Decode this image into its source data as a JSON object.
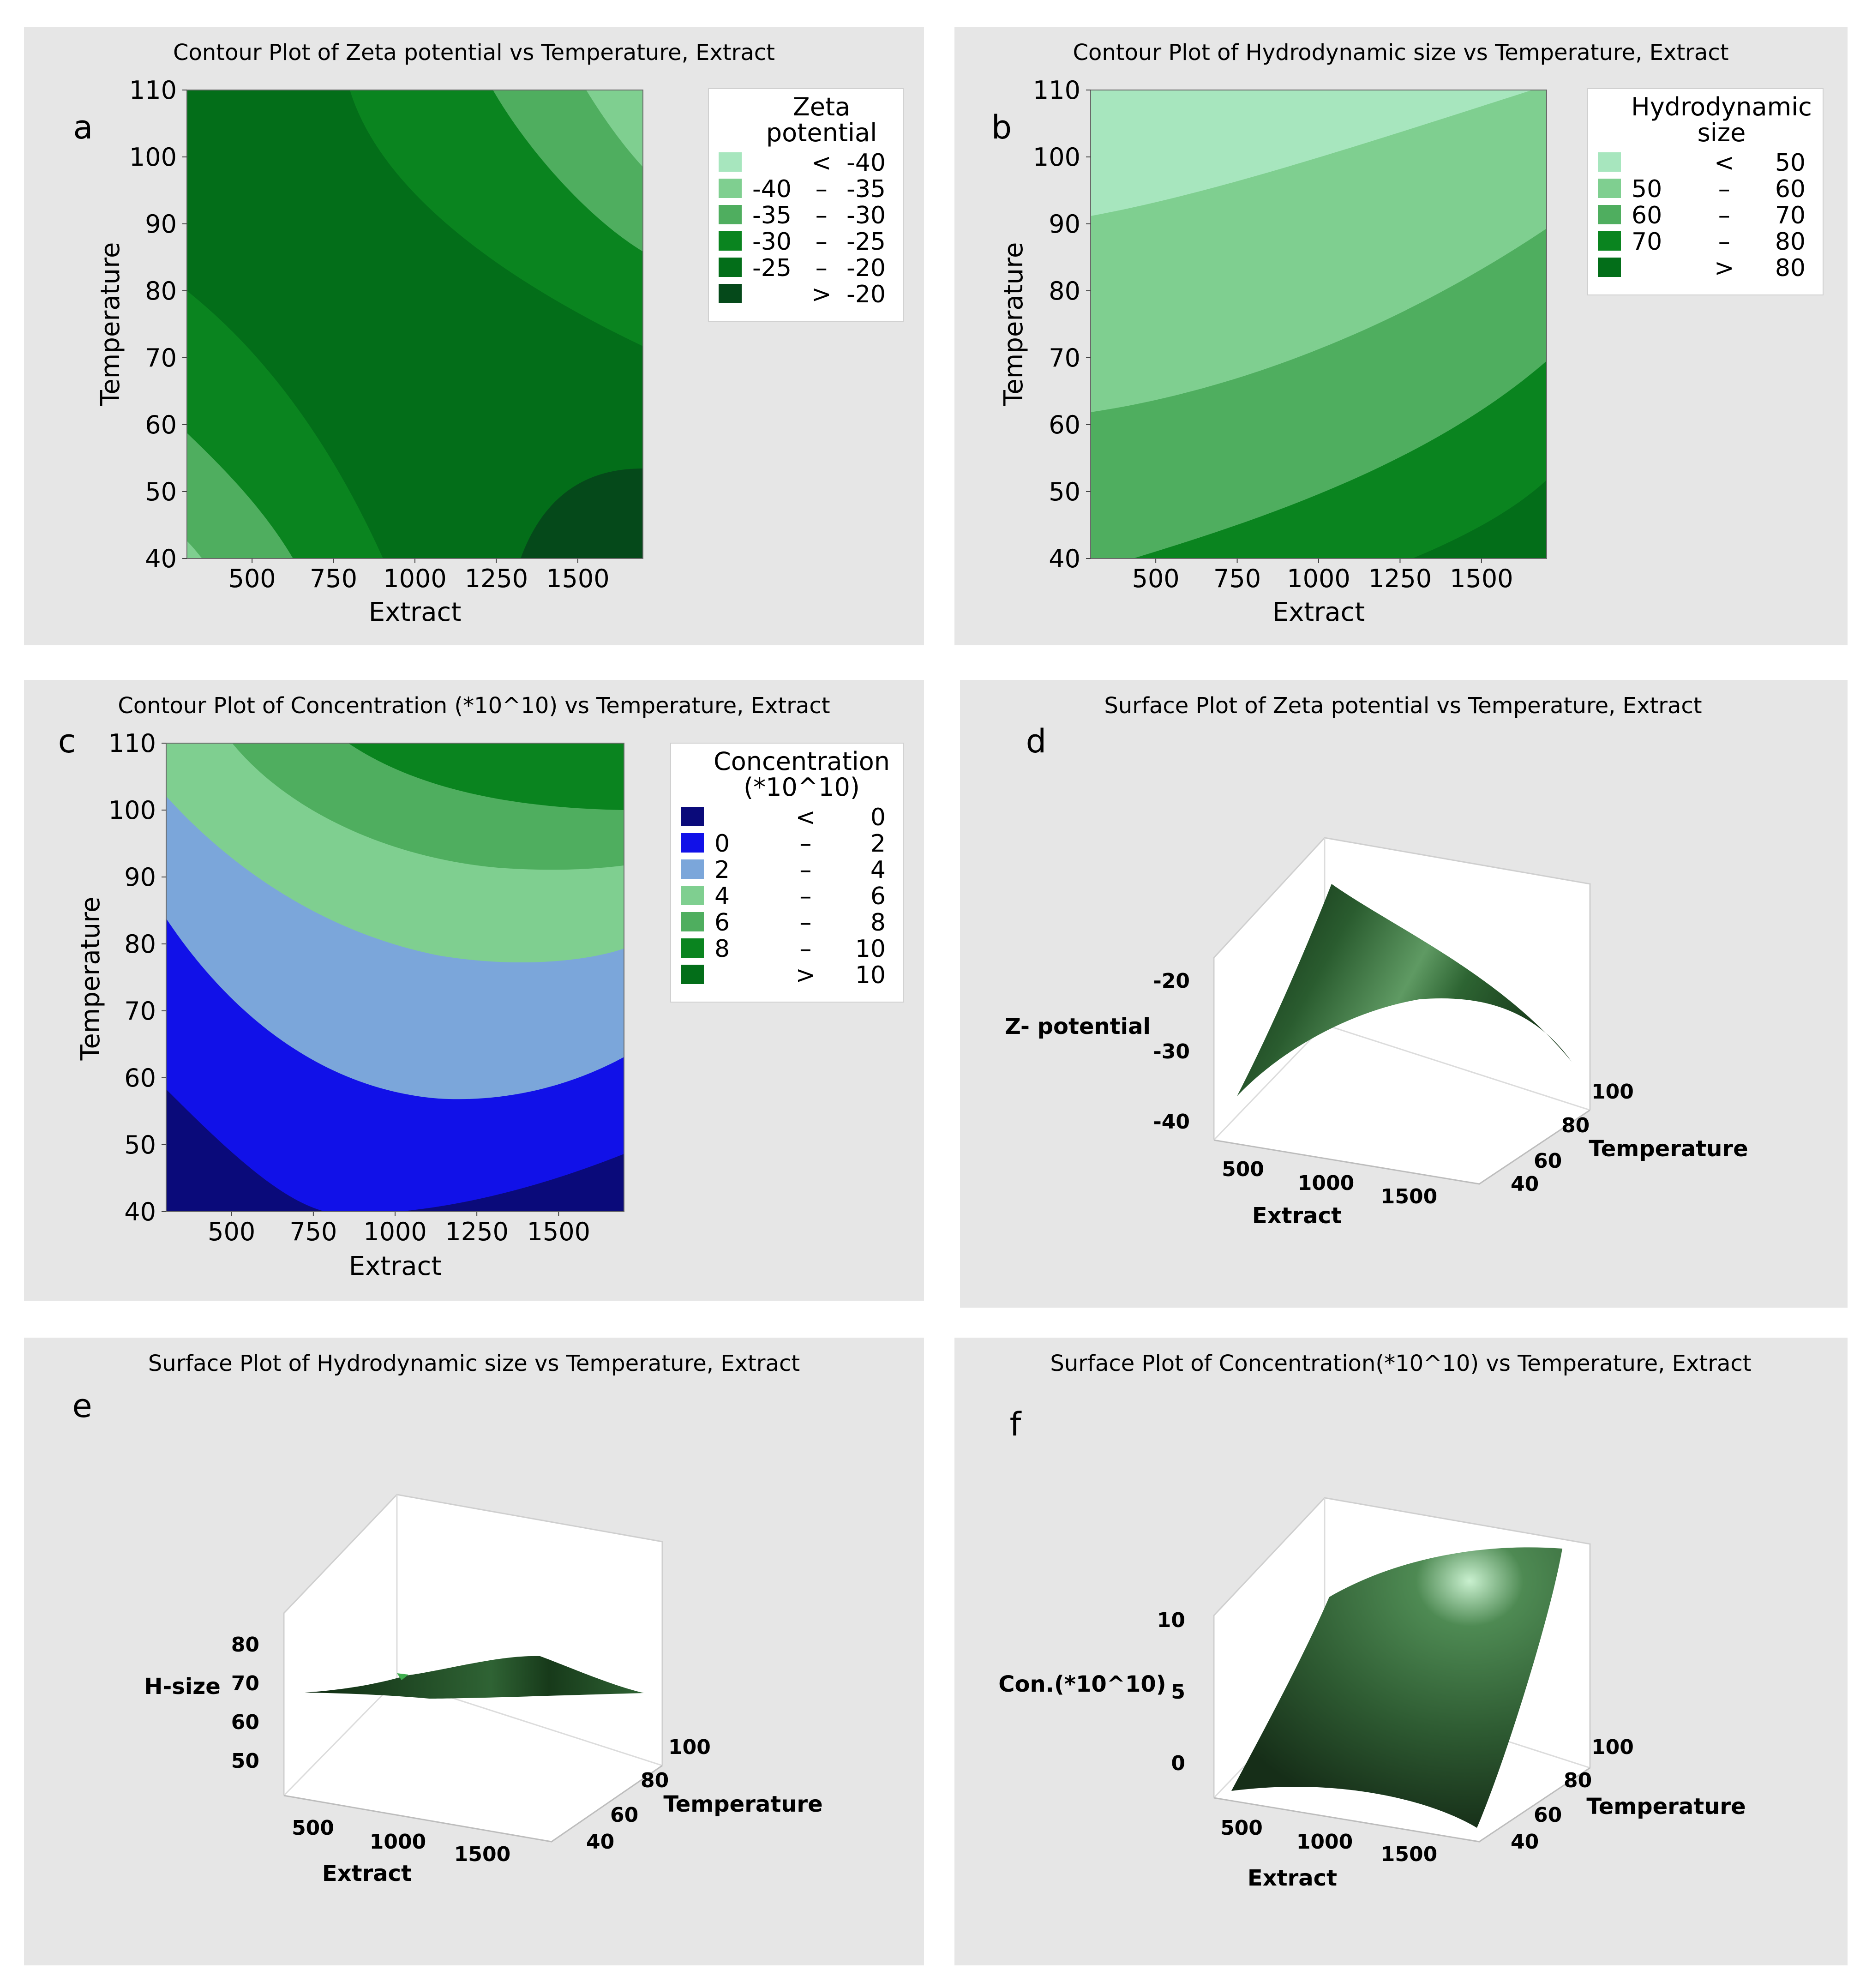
{
  "chart_data": [
    {
      "panel": "a",
      "type": "contour",
      "title": "Contour Plot of Zeta potential vs Temperature, Extract",
      "xlabel": "Extract",
      "ylabel": "Temperature",
      "xticks": [
        "500",
        "750",
        "1000",
        "1250",
        "1500"
      ],
      "yticks": [
        "40",
        "50",
        "60",
        "70",
        "80",
        "90",
        "100",
        "110"
      ],
      "xlim": [
        300,
        1700
      ],
      "ylim": [
        40,
        110
      ],
      "legend": {
        "title": [
          "Zeta",
          "potential"
        ],
        "rows": [
          {
            "lo": "",
            "sym": "<",
            "hi": "-40",
            "color": "#a7e6be"
          },
          {
            "lo": "-40",
            "sym": "–",
            "hi": "-35",
            "color": "#7fcf90"
          },
          {
            "lo": "-35",
            "sym": "–",
            "hi": "-30",
            "color": "#4fae5f"
          },
          {
            "lo": "-30",
            "sym": "–",
            "hi": "-25",
            "color": "#0a841f"
          },
          {
            "lo": "-25",
            "sym": "–",
            "hi": "-20",
            "color": "#036e19"
          },
          {
            "lo": "",
            "sym": ">",
            "hi": "-20",
            "color": "#05491a"
          }
        ]
      }
    },
    {
      "panel": "b",
      "type": "contour",
      "title": "Contour Plot of Hydrodynamic size vs Temperature, Extract",
      "xlabel": "Extract",
      "ylabel": "Temperature",
      "xticks": [
        "500",
        "750",
        "1000",
        "1250",
        "1500"
      ],
      "yticks": [
        "40",
        "50",
        "60",
        "70",
        "80",
        "90",
        "100",
        "110"
      ],
      "xlim": [
        300,
        1700
      ],
      "ylim": [
        40,
        110
      ],
      "legend": {
        "title": [
          "Hydrodynamic",
          "size"
        ],
        "rows": [
          {
            "lo": "",
            "sym": "<",
            "hi": "50",
            "color": "#a7e6be"
          },
          {
            "lo": "50",
            "sym": "–",
            "hi": "60",
            "color": "#7fcf90"
          },
          {
            "lo": "60",
            "sym": "–",
            "hi": "70",
            "color": "#4fae5f"
          },
          {
            "lo": "70",
            "sym": "–",
            "hi": "80",
            "color": "#0a841f"
          },
          {
            "lo": "",
            "sym": ">",
            "hi": "80",
            "color": "#036e19"
          }
        ]
      }
    },
    {
      "panel": "c",
      "type": "contour",
      "title": "Contour Plot of Concentration (*10^10) vs Temperature, Extract",
      "xlabel": "Extract",
      "ylabel": "Temperature",
      "xticks": [
        "500",
        "750",
        "1000",
        "1250",
        "1500"
      ],
      "yticks": [
        "40",
        "50",
        "60",
        "70",
        "80",
        "90",
        "100",
        "110"
      ],
      "xlim": [
        300,
        1700
      ],
      "ylim": [
        40,
        110
      ],
      "legend": {
        "title": [
          "Concentration",
          "(*10^10)"
        ],
        "rows": [
          {
            "lo": "",
            "sym": "<",
            "hi": "0",
            "color": "#0a0a7a"
          },
          {
            "lo": "0",
            "sym": "–",
            "hi": "2",
            "color": "#1111e8"
          },
          {
            "lo": "2",
            "sym": "–",
            "hi": "4",
            "color": "#7ba6da"
          },
          {
            "lo": "4",
            "sym": "–",
            "hi": "6",
            "color": "#7fcf90"
          },
          {
            "lo": "6",
            "sym": "–",
            "hi": "8",
            "color": "#4fae5f"
          },
          {
            "lo": "8",
            "sym": "–",
            "hi": "10",
            "color": "#0a841f"
          },
          {
            "lo": "",
            "sym": ">",
            "hi": "10",
            "color": "#036e19"
          }
        ]
      }
    },
    {
      "panel": "d",
      "type": "surface",
      "title": "Surface Plot of Zeta potential vs Temperature, Extract",
      "zlabel": "Z- potential",
      "xlabel": "Extract",
      "ylabel": "Temperature",
      "zticks": [
        "-20",
        "-30",
        "-40"
      ],
      "xticks": [
        "500",
        "1000",
        "1500"
      ],
      "yticks": [
        "40",
        "60",
        "80",
        "100"
      ]
    },
    {
      "panel": "e",
      "type": "surface",
      "title": "Surface Plot of Hydrodynamic size vs Temperature, Extract",
      "zlabel": "H-size",
      "xlabel": "Extract",
      "ylabel": "Temperature",
      "zticks": [
        "80",
        "70",
        "60",
        "50"
      ],
      "xticks": [
        "500",
        "1000",
        "1500"
      ],
      "yticks": [
        "40",
        "60",
        "80",
        "100"
      ]
    },
    {
      "panel": "f",
      "type": "surface",
      "title": "Surface Plot of Concentration(*10^10) vs Temperature, Extract",
      "zlabel": "Con.(*10^10)",
      "xlabel": "Extract",
      "ylabel": "Temperature",
      "zticks": [
        "10",
        "5",
        "0"
      ],
      "xticks": [
        "500",
        "1000",
        "1500"
      ],
      "yticks": [
        "40",
        "60",
        "80",
        "100"
      ]
    }
  ]
}
